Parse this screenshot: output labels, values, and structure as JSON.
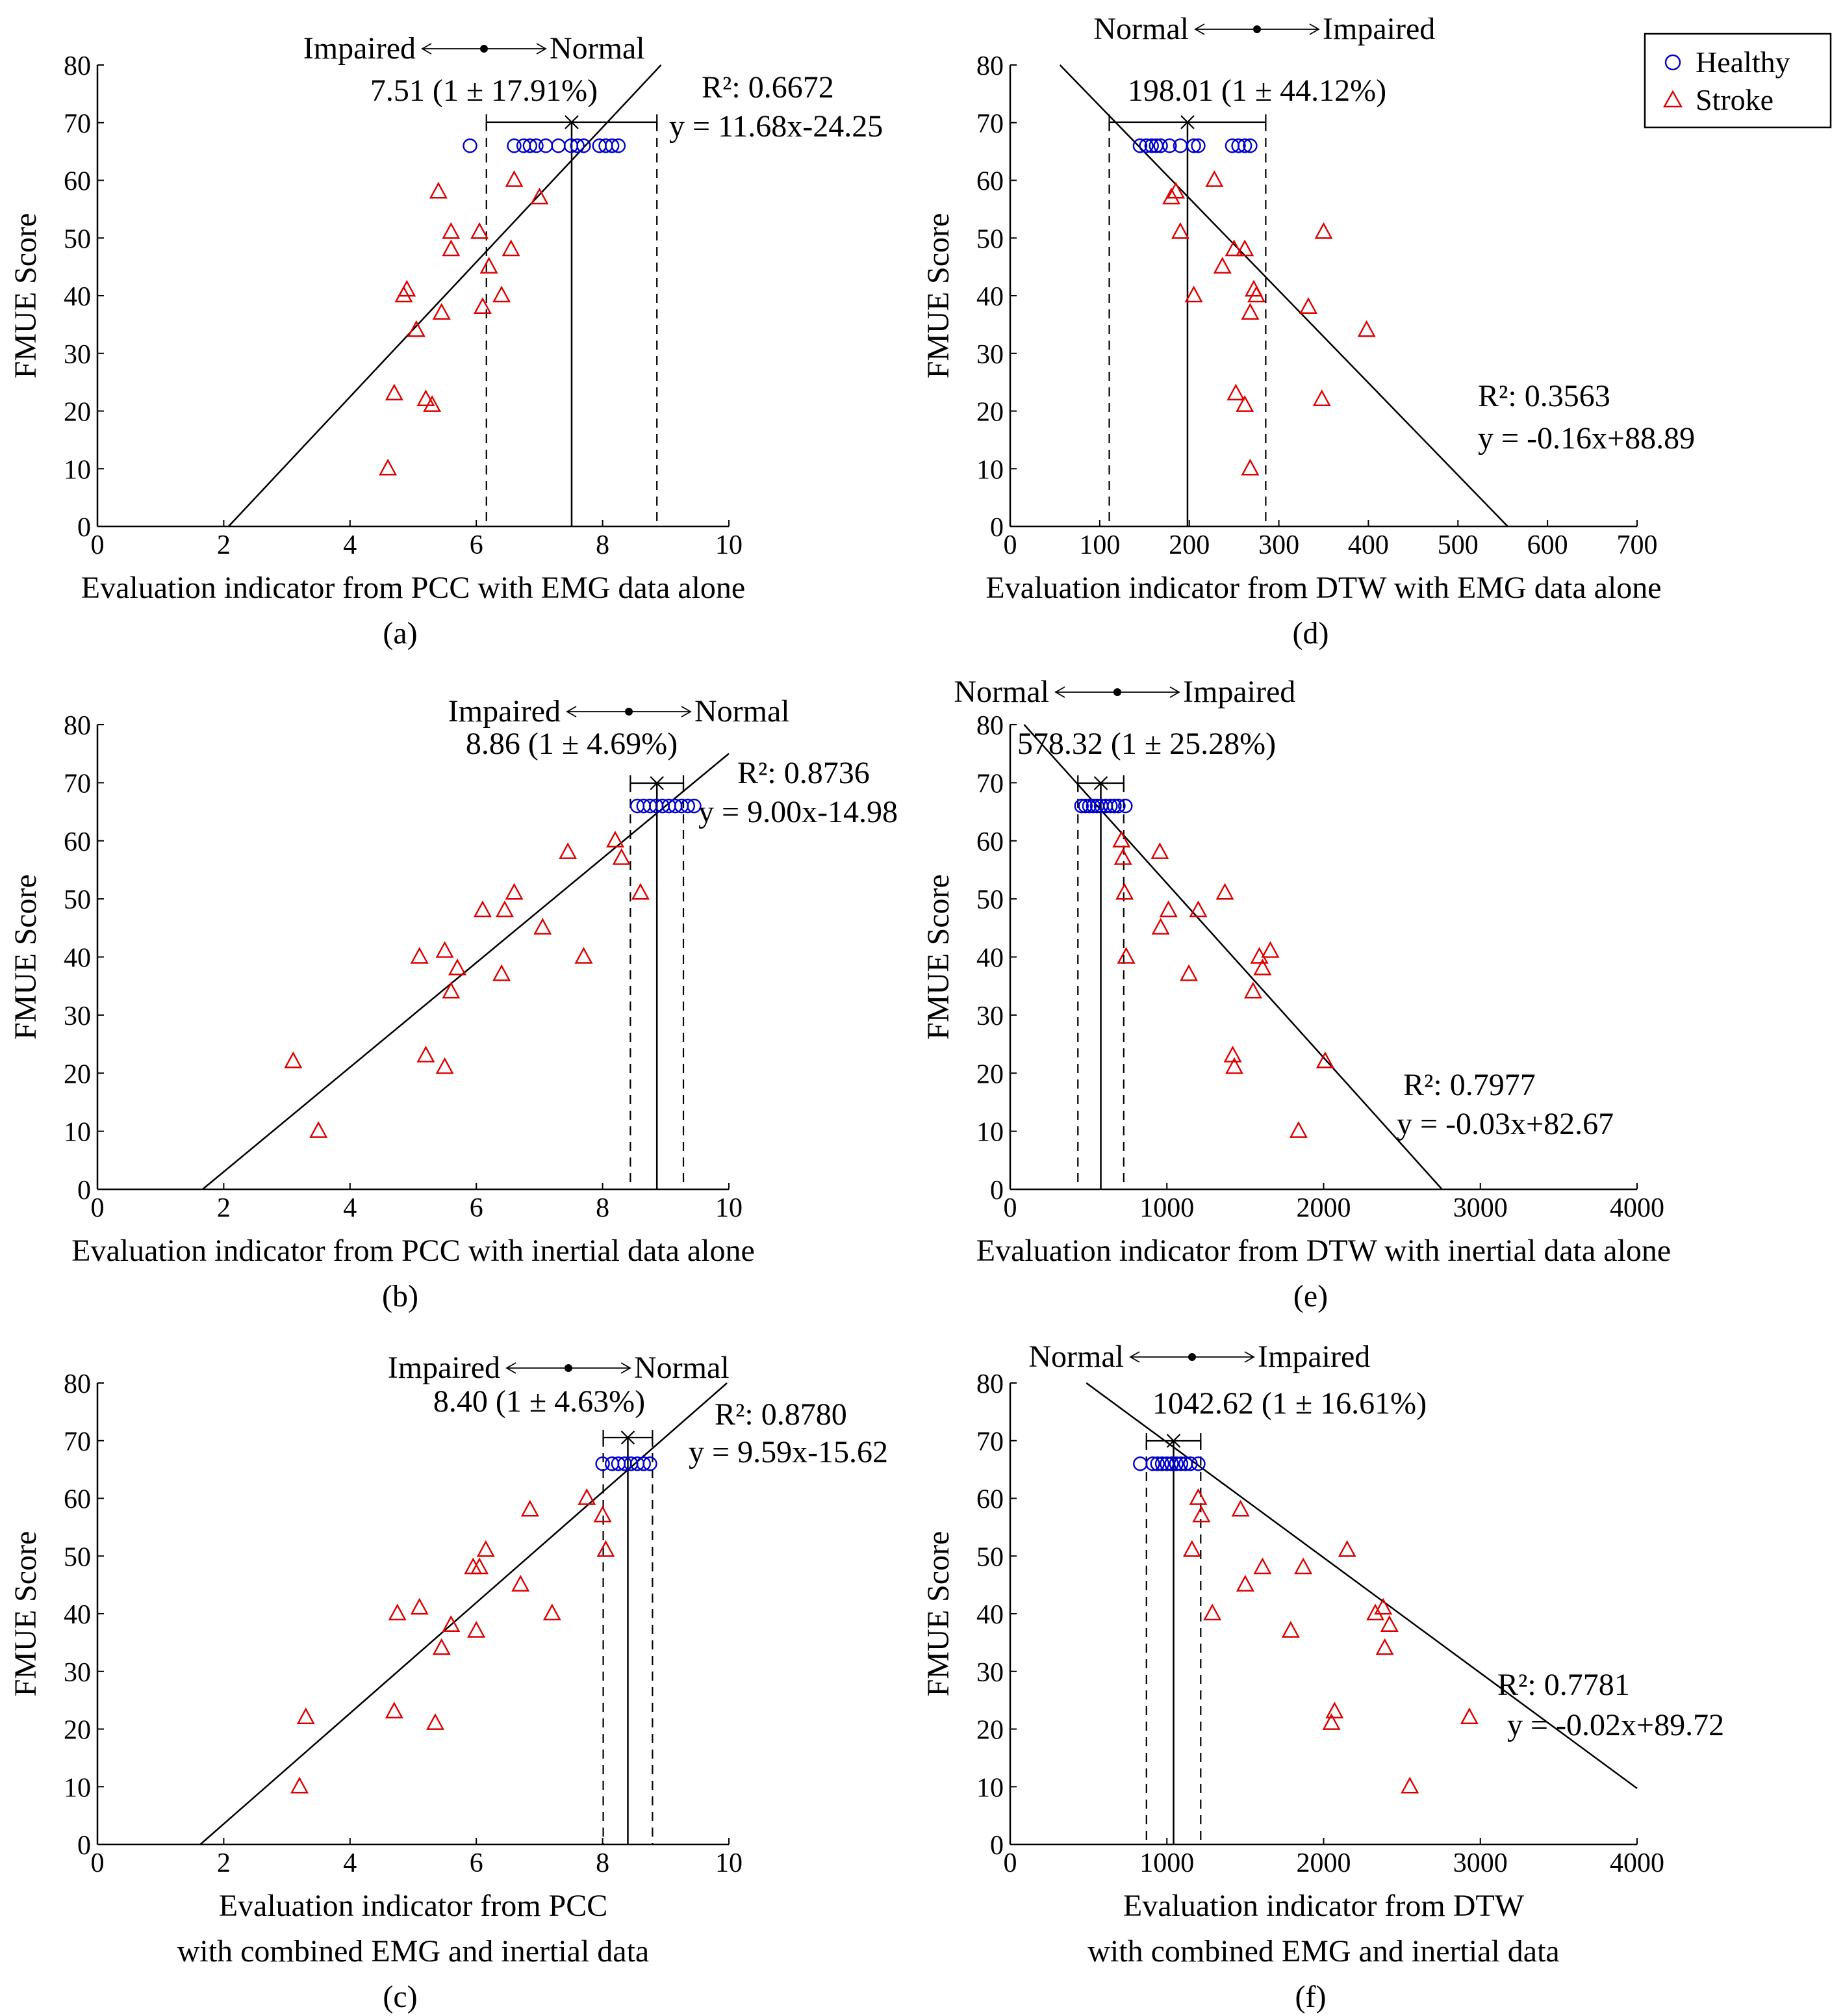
{
  "legend": {
    "items": [
      {
        "label": "Healthy",
        "marker": "circle",
        "color": "#0000cc"
      },
      {
        "label": "Stroke",
        "marker": "triangle",
        "color": "#dd0000"
      }
    ]
  },
  "chart_data": [
    {
      "id": "a",
      "type": "scatter",
      "panel_label": "(a)",
      "xlabel": [
        "Evaluation indicator from PCC with EMG data alone"
      ],
      "ylabel": "FMUE Score",
      "xlim": [
        0,
        10
      ],
      "ylim": [
        0,
        80
      ],
      "xticks": [
        0,
        2,
        4,
        6,
        8,
        10
      ],
      "yticks": [
        0,
        10,
        20,
        30,
        40,
        50,
        60,
        70,
        80
      ],
      "direction": {
        "left": "Impaired",
        "right": "Normal"
      },
      "threshold_label": "7.51 (1 ± 17.91%)",
      "threshold": {
        "mean": 7.51,
        "lower": 6.16,
        "upper": 8.86
      },
      "r2_label": "R²: 0.6672",
      "eq_label": "y = 11.68x-24.25",
      "fit": {
        "slope": 11.68,
        "intercept": -24.25
      },
      "series": [
        {
          "name": "Healthy",
          "x": [
            5.9,
            6.6,
            6.75,
            6.85,
            6.95,
            7.1,
            7.3,
            7.5,
            7.6,
            7.7,
            7.95,
            8.05,
            8.15,
            8.25
          ],
          "y": [
            66,
            66,
            66,
            66,
            66,
            66,
            66,
            66,
            66,
            66,
            66,
            66,
            66,
            66
          ]
        },
        {
          "name": "Stroke",
          "x": [
            4.6,
            4.7,
            4.85,
            4.9,
            5.05,
            5.2,
            5.3,
            5.4,
            5.45,
            5.6,
            5.6,
            6.05,
            6.1,
            6.2,
            6.4,
            6.55,
            6.6,
            7.0
          ],
          "y": [
            10,
            23,
            40,
            41,
            34,
            22,
            21,
            58,
            37,
            51,
            48,
            51,
            38,
            45,
            40,
            48,
            60,
            57
          ]
        }
      ]
    },
    {
      "id": "b",
      "type": "scatter",
      "panel_label": "(b)",
      "xlabel": [
        "Evaluation indicator from PCC with inertial data alone"
      ],
      "ylabel": "FMUE Score",
      "xlim": [
        0,
        10
      ],
      "ylim": [
        0,
        80
      ],
      "xticks": [
        0,
        2,
        4,
        6,
        8,
        10
      ],
      "yticks": [
        0,
        10,
        20,
        30,
        40,
        50,
        60,
        70,
        80
      ],
      "direction": {
        "left": "Impaired",
        "right": "Normal"
      },
      "threshold_label": "8.86 (1 ± 4.69%)",
      "threshold": {
        "mean": 8.86,
        "lower": 8.44,
        "upper": 9.28
      },
      "r2_label": "R²: 0.8736",
      "eq_label": "y = 9.00x-14.98",
      "fit": {
        "slope": 9.0,
        "intercept": -14.98
      },
      "series": [
        {
          "name": "Healthy",
          "x": [
            8.55,
            8.65,
            8.75,
            8.85,
            8.95,
            9.05,
            9.15,
            9.25,
            9.35,
            9.45
          ],
          "y": [
            66,
            66,
            66,
            66,
            66,
            66,
            66,
            66,
            66,
            66
          ]
        },
        {
          "name": "Stroke",
          "x": [
            3.1,
            3.5,
            5.1,
            5.2,
            5.5,
            5.5,
            5.6,
            5.7,
            6.1,
            6.4,
            6.45,
            6.6,
            7.05,
            7.45,
            7.7,
            8.2,
            8.3,
            8.6
          ],
          "y": [
            22,
            10,
            40,
            23,
            41,
            21,
            34,
            38,
            48,
            37,
            48,
            51,
            45,
            58,
            40,
            60,
            57,
            51
          ]
        }
      ]
    },
    {
      "id": "c",
      "type": "scatter",
      "panel_label": "(c)",
      "xlabel": [
        "Evaluation indicator from PCC",
        "with combined EMG and inertial data"
      ],
      "ylabel": "FMUE Score",
      "xlim": [
        0,
        10
      ],
      "ylim": [
        0,
        80
      ],
      "xticks": [
        0,
        2,
        4,
        6,
        8,
        10
      ],
      "yticks": [
        0,
        10,
        20,
        30,
        40,
        50,
        60,
        70,
        80
      ],
      "direction": {
        "left": "Impaired",
        "right": "Normal"
      },
      "threshold_label": "8.40 (1 ± 4.63%)",
      "threshold": {
        "mean": 8.4,
        "lower": 8.01,
        "upper": 8.79
      },
      "r2_label": "R²: 0.8780",
      "eq_label": "y = 9.59x-15.62",
      "fit": {
        "slope": 9.59,
        "intercept": -15.62
      },
      "series": [
        {
          "name": "Healthy",
          "x": [
            8.0,
            8.15,
            8.25,
            8.35,
            8.45,
            8.55,
            8.65,
            8.75
          ],
          "y": [
            66,
            66,
            66,
            66,
            66,
            66,
            66,
            66
          ]
        },
        {
          "name": "Stroke",
          "x": [
            3.2,
            3.3,
            4.7,
            4.75,
            5.1,
            5.35,
            5.45,
            5.6,
            5.95,
            6.0,
            6.05,
            6.15,
            6.7,
            6.85,
            7.2,
            7.75,
            8.0,
            8.05
          ],
          "y": [
            10,
            22,
            23,
            40,
            41,
            21,
            34,
            38,
            48,
            37,
            48,
            51,
            45,
            58,
            40,
            60,
            57,
            51
          ]
        }
      ]
    },
    {
      "id": "d",
      "type": "scatter",
      "panel_label": "(d)",
      "xlabel": [
        "Evaluation indicator from DTW with EMG data alone"
      ],
      "ylabel": "FMUE Score",
      "xlim": [
        0,
        700
      ],
      "ylim": [
        0,
        80
      ],
      "xticks": [
        0,
        100,
        200,
        300,
        400,
        500,
        600,
        700
      ],
      "yticks": [
        0,
        10,
        20,
        30,
        40,
        50,
        60,
        70,
        80
      ],
      "direction": {
        "left": "Normal",
        "right": "Impaired"
      },
      "threshold_label": "198.01 (1 ± 44.12%)",
      "threshold": {
        "mean": 198.01,
        "lower": 110.65,
        "upper": 285.37
      },
      "r2_label": "R²: 0.3563",
      "eq_label": "y = -0.16x+88.89",
      "fit": {
        "slope": -0.16,
        "intercept": 88.89
      },
      "series": [
        {
          "name": "Healthy",
          "x": [
            145,
            152,
            158,
            163,
            168,
            178,
            190,
            205,
            210,
            248,
            255,
            262,
            268
          ],
          "y": [
            66,
            66,
            66,
            66,
            66,
            66,
            66,
            66,
            66,
            66,
            66,
            66,
            66
          ]
        },
        {
          "name": "Stroke",
          "x": [
            180,
            185,
            190,
            205,
            228,
            237,
            250,
            252,
            262,
            262,
            268,
            268,
            272,
            275,
            333,
            348,
            350,
            398
          ],
          "y": [
            57,
            58,
            51,
            40,
            60,
            45,
            48,
            23,
            48,
            21,
            10,
            37,
            41,
            40,
            38,
            22,
            51,
            34
          ]
        }
      ]
    },
    {
      "id": "e",
      "type": "scatter",
      "panel_label": "(e)",
      "xlabel": [
        "Evaluation indicator from DTW with inertial data alone"
      ],
      "ylabel": "FMUE Score",
      "xlim": [
        0,
        4000
      ],
      "ylim": [
        0,
        80
      ],
      "xticks": [
        0,
        1000,
        2000,
        3000,
        4000
      ],
      "yticks": [
        0,
        10,
        20,
        30,
        40,
        50,
        60,
        70,
        80
      ],
      "direction": {
        "left": "Normal",
        "right": "Impaired"
      },
      "threshold_label": "578.32 (1 ± 25.28%)",
      "threshold": {
        "mean": 578.32,
        "lower": 432.12,
        "upper": 724.52
      },
      "r2_label": "R²: 0.7977",
      "eq_label": "y = -0.03x+82.67",
      "fit": {
        "slope": -0.03,
        "intercept": 82.67
      },
      "series": [
        {
          "name": "Healthy",
          "x": [
            455,
            480,
            505,
            530,
            555,
            580,
            610,
            640,
            665,
            690,
            735
          ],
          "y": [
            66,
            66,
            66,
            66,
            66,
            66,
            66,
            66,
            66,
            66,
            66
          ]
        },
        {
          "name": "Stroke",
          "x": [
            710,
            720,
            730,
            740,
            955,
            960,
            1010,
            1140,
            1200,
            1370,
            1420,
            1430,
            1550,
            1590,
            1610,
            1660,
            1840,
            2010
          ],
          "y": [
            60,
            57,
            51,
            40,
            58,
            45,
            48,
            37,
            48,
            51,
            23,
            21,
            34,
            40,
            38,
            41,
            10,
            22
          ]
        }
      ]
    },
    {
      "id": "f",
      "type": "scatter",
      "panel_label": "(f)",
      "xlabel": [
        "Evaluation indicator from DTW",
        "with combined EMG and inertial data"
      ],
      "ylabel": "FMUE Score",
      "xlim": [
        0,
        4000
      ],
      "ylim": [
        0,
        80
      ],
      "xticks": [
        0,
        1000,
        2000,
        3000,
        4000
      ],
      "yticks": [
        0,
        10,
        20,
        30,
        40,
        50,
        60,
        70,
        80
      ],
      "direction": {
        "left": "Normal",
        "right": "Impaired"
      },
      "threshold_label": "1042.62 (1 ± 16.61%)",
      "threshold": {
        "mean": 1042.62,
        "lower": 869.44,
        "upper": 1215.8
      },
      "r2_label": "R²: 0.7781",
      "eq_label": "y = -0.02x+89.72",
      "fit": {
        "slope": -0.02,
        "intercept": 89.72
      },
      "series": [
        {
          "name": "Healthy",
          "x": [
            830,
            910,
            940,
            970,
            1000,
            1030,
            1060,
            1090,
            1120,
            1150,
            1200
          ],
          "y": [
            66,
            66,
            66,
            66,
            66,
            66,
            66,
            66,
            66,
            66,
            66
          ]
        },
        {
          "name": "Stroke",
          "x": [
            1160,
            1200,
            1220,
            1290,
            1470,
            1500,
            1610,
            1790,
            1870,
            2050,
            2070,
            2150,
            2330,
            2380,
            2390,
            2420,
            2550,
            2930
          ],
          "y": [
            51,
            60,
            57,
            40,
            58,
            45,
            48,
            37,
            48,
            21,
            23,
            51,
            40,
            41,
            34,
            38,
            10,
            22
          ]
        }
      ]
    }
  ]
}
